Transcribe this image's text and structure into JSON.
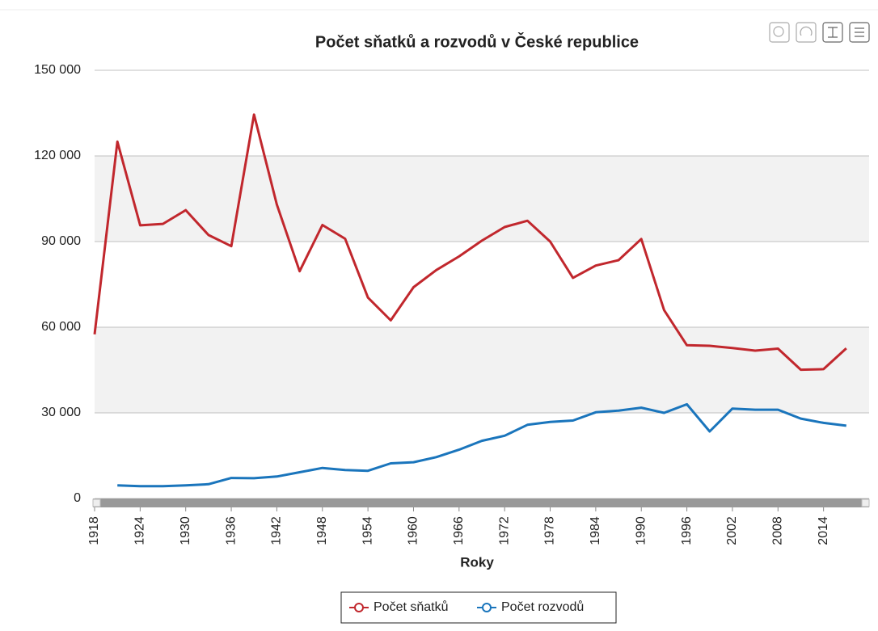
{
  "chart_data": {
    "type": "line",
    "title": "Počet sňatků a rozvodů v České republice",
    "x_label": "Roky",
    "x": [
      1918,
      1921,
      1924,
      1927,
      1930,
      1933,
      1936,
      1939,
      1942,
      1945,
      1948,
      1951,
      1954,
      1957,
      1960,
      1963,
      1966,
      1969,
      1972,
      1975,
      1978,
      1981,
      1984,
      1987,
      1990,
      1993,
      1996,
      1999,
      2002,
      2005,
      2008,
      2011,
      2014,
      2017
    ],
    "series": [
      {
        "name": "Počet sňatků",
        "color": "#c1272d",
        "values": [
          57500,
          125000,
          95700,
          96200,
          101000,
          92300,
          88400,
          134500,
          103000,
          79600,
          95800,
          91000,
          70400,
          62400,
          74000,
          80000,
          84800,
          90300,
          95100,
          97300,
          90000,
          77300,
          81600,
          83500,
          90900,
          66000,
          53700,
          53500,
          52700,
          51800,
          52500,
          45100,
          45300,
          52600
        ]
      },
      {
        "name": "Počet rozvodů",
        "color": "#1a75bc",
        "values": [
          null,
          4600,
          4300,
          4300,
          4600,
          5000,
          7200,
          7100,
          7700,
          9200,
          10700,
          10000,
          9700,
          12300,
          12700,
          14500,
          17100,
          20200,
          22000,
          25800,
          26800,
          27300,
          30200,
          30800,
          31800,
          30000,
          33000,
          23500,
          31500,
          31100,
          31100,
          28000,
          26500,
          25500
        ]
      }
    ],
    "xlim": [
      1918,
      2020
    ],
    "xticks": [
      1918,
      1924,
      1930,
      1936,
      1942,
      1948,
      1954,
      1960,
      1966,
      1972,
      1978,
      1984,
      1990,
      1996,
      2002,
      2008,
      2014
    ],
    "ylim": [
      0,
      150000
    ],
    "yticks": [
      0,
      {
        "value": 30000,
        "label": "30 000"
      },
      {
        "value": 60000,
        "label": "60 000"
      },
      {
        "value": 90000,
        "label": "90 000"
      },
      {
        "value": 120000,
        "label": "120 000"
      },
      {
        "value": 150000,
        "label": "150 000"
      }
    ],
    "grid": true
  }
}
